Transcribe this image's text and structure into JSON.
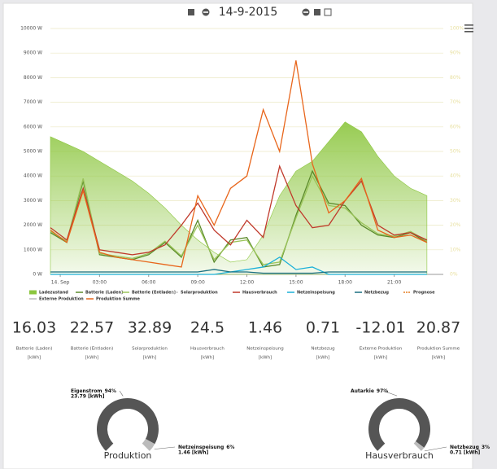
{
  "header": {
    "date": "14-9-2015"
  },
  "chart_data": {
    "type": "line",
    "x": [
      0,
      1,
      2,
      3,
      4,
      5,
      6,
      7,
      8,
      9,
      10,
      11,
      12,
      13,
      14,
      15,
      16,
      17,
      18,
      19,
      20,
      21,
      22,
      23
    ],
    "xlim": [
      0,
      24
    ],
    "xticks": [
      {
        "value": 0.6,
        "label": "14. Sep"
      },
      {
        "value": 3,
        "label": "03:00"
      },
      {
        "value": 6,
        "label": "06:00"
      },
      {
        "value": 9,
        "label": "09:00"
      },
      {
        "value": 12,
        "label": "12:00"
      },
      {
        "value": 15,
        "label": "15:00"
      },
      {
        "value": 18,
        "label": "18:00"
      },
      {
        "value": 21,
        "label": "21:00"
      }
    ],
    "ylim": [
      0,
      10000
    ],
    "yticks": [
      {
        "value": 0,
        "label": "0 W"
      },
      {
        "value": 1000,
        "label": "1000 W"
      },
      {
        "value": 2000,
        "label": "2000 W"
      },
      {
        "value": 3000,
        "label": "3000 W"
      },
      {
        "value": 4000,
        "label": "4000 W"
      },
      {
        "value": 5000,
        "label": "5000 W"
      },
      {
        "value": 6000,
        "label": "6000 W"
      },
      {
        "value": 7000,
        "label": "7000 W"
      },
      {
        "value": 8000,
        "label": "8000 W"
      },
      {
        "value": 9000,
        "label": "9000 W"
      },
      {
        "value": 10000,
        "label": "10000 W"
      }
    ],
    "y2lim": [
      0,
      100
    ],
    "y2ticks": [
      {
        "value": 0,
        "label": "0%"
      },
      {
        "value": 10,
        "label": "10%"
      },
      {
        "value": 20,
        "label": "20%"
      },
      {
        "value": 30,
        "label": "30%"
      },
      {
        "value": 40,
        "label": "40%"
      },
      {
        "value": 50,
        "label": "50%"
      },
      {
        "value": 60,
        "label": "60%"
      },
      {
        "value": 70,
        "label": "70%"
      },
      {
        "value": 80,
        "label": "80%"
      },
      {
        "value": 90,
        "label": "90%"
      },
      {
        "value": 100,
        "label": "100%"
      }
    ],
    "grid": true,
    "series": [
      {
        "name": "Ladezustand",
        "color": "#8cc63f",
        "kind": "area",
        "axis": "y2",
        "values": [
          56,
          53,
          50,
          46,
          42,
          38,
          33,
          27,
          20,
          14,
          9,
          5,
          6,
          16,
          32,
          42,
          46,
          54,
          62,
          58,
          48,
          40,
          35,
          32
        ]
      },
      {
        "name": "Batterie (Laden)",
        "color": "#5a8a2a",
        "values": [
          1700,
          1300,
          3800,
          800,
          700,
          600,
          800,
          1300,
          700,
          2200,
          500,
          1400,
          1500,
          300,
          400,
          2400,
          4200,
          2900,
          2800,
          2000,
          1600,
          1500,
          1700,
          1300
        ]
      },
      {
        "name": "Batterie (Entladen)",
        "color": "#9bc45a",
        "values": [
          1750,
          1350,
          3900,
          850,
          750,
          650,
          850,
          1350,
          750,
          2000,
          600,
          1300,
          1400,
          400,
          500,
          2300,
          4000,
          2800,
          2700,
          2100,
          1650,
          1550,
          1750,
          1350
        ]
      },
      {
        "name": "Solarproduktion",
        "color": "#cccccc",
        "values": [
          null,
          null,
          null,
          null,
          null,
          null,
          null,
          null,
          null,
          null,
          null,
          null,
          null,
          null,
          null,
          null,
          null,
          null,
          null,
          null,
          null,
          null,
          null,
          null
        ]
      },
      {
        "name": "Hausverbrauch",
        "color": "#c0392b",
        "values": [
          1900,
          1400,
          3500,
          1000,
          900,
          800,
          900,
          1200,
          2000,
          2900,
          1800,
          1200,
          2200,
          1500,
          4400,
          2800,
          1900,
          2000,
          3000,
          3800,
          2000,
          1600,
          1700,
          1400
        ]
      },
      {
        "name": "Netzeinspeisung",
        "color": "#1ab0d8",
        "values": [
          0,
          0,
          0,
          0,
          0,
          0,
          0,
          0,
          0,
          0,
          0,
          100,
          200,
          300,
          700,
          200,
          300,
          0,
          0,
          0,
          0,
          0,
          0,
          0
        ]
      },
      {
        "name": "Netzbezug",
        "color": "#1a6f80",
        "values": [
          100,
          100,
          100,
          100,
          100,
          100,
          100,
          100,
          100,
          100,
          200,
          100,
          100,
          50,
          50,
          50,
          50,
          100,
          100,
          100,
          100,
          100,
          100,
          100
        ]
      },
      {
        "name": "Prognose",
        "color": "#e67e22",
        "dash": true,
        "values": [
          null,
          null,
          null,
          null,
          null,
          null,
          null,
          null,
          null,
          null,
          null,
          null,
          null,
          null,
          null,
          null,
          null,
          null,
          null,
          null,
          null,
          null,
          null,
          null
        ]
      },
      {
        "name": "Externe Produktion",
        "color": "#bbbbbb",
        "values": [
          null,
          null,
          null,
          null,
          null,
          null,
          null,
          null,
          null,
          null,
          null,
          null,
          null,
          null,
          null,
          null,
          null,
          null,
          null,
          null,
          null,
          null,
          null,
          null
        ]
      },
      {
        "name": "Produktion Summe",
        "color": "#e8661c",
        "values": [
          1800,
          1300,
          3400,
          900,
          700,
          600,
          500,
          400,
          300,
          3200,
          2000,
          3500,
          4000,
          6700,
          5000,
          8700,
          4500,
          2500,
          3000,
          3900,
          1800,
          1500,
          1600,
          1300
        ]
      }
    ]
  },
  "stats": [
    {
      "value": "16.03",
      "label": "Batterie (Laden)",
      "unit": "[kWh]"
    },
    {
      "value": "22.57",
      "label": "Batterie (Entladen)",
      "unit": "[kWh]"
    },
    {
      "value": "32.89",
      "label": "Solarproduktion",
      "unit": "[kWh]"
    },
    {
      "value": "24.5",
      "label": "Hausverbrauch",
      "unit": "[kWh]"
    },
    {
      "value": "1.46",
      "label": "Netzeinspeisung",
      "unit": "[kWh]"
    },
    {
      "value": "0.71",
      "label": "Netzbezug",
      "unit": "[kWh]"
    },
    {
      "value": "-12.01",
      "label": "Externe Produktion",
      "unit": "[kWh]"
    },
    {
      "value": "20.87",
      "label": "Produktion Summe",
      "unit": "[kWh]"
    }
  ],
  "donuts": [
    {
      "title": "Produktion",
      "slices": [
        {
          "name": "Eigenstrom",
          "value": 94,
          "value_label": "94%",
          "energy": "23.79 [kWh]",
          "color": "#555555"
        },
        {
          "name": "Netzeinspeisung",
          "value": 6,
          "value_label": "6%",
          "energy": "1.46 [kWh]",
          "color": "#bbbbbb"
        }
      ]
    },
    {
      "title": "Hausverbrauch",
      "slices": [
        {
          "name": "Autarkie",
          "value": 97,
          "value_label": "97%",
          "color": "#555555"
        },
        {
          "name": "Netzbezug",
          "value": 3,
          "value_label": "3%",
          "energy": "0.71 [kWh]",
          "color": "#bbbbbb"
        }
      ]
    }
  ]
}
